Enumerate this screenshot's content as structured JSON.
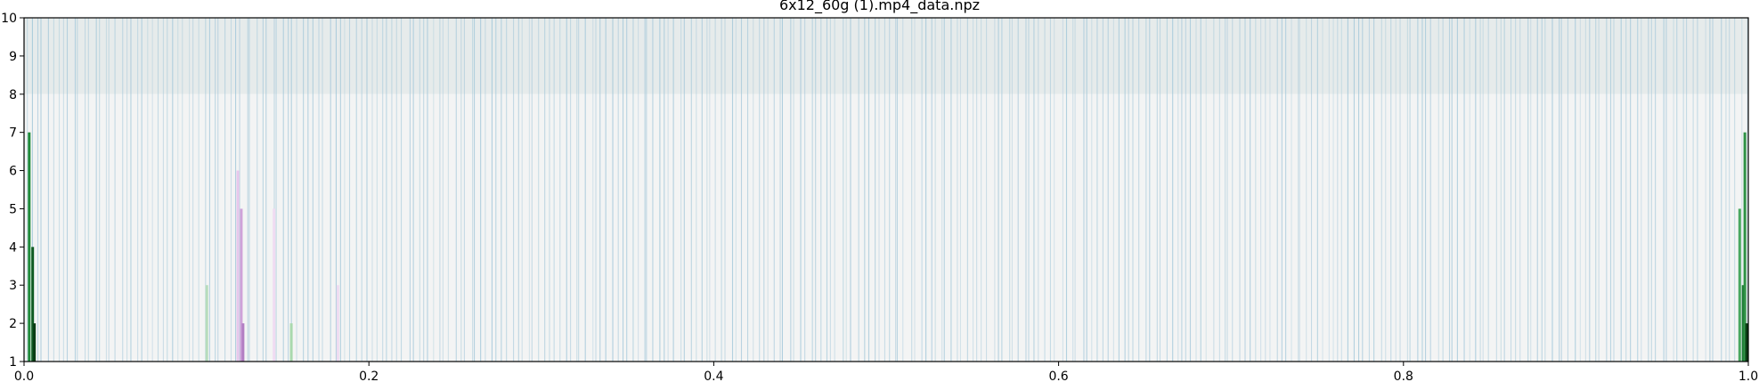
{
  "chart_data": {
    "type": "heatmap",
    "title": "6x12_60g (1).mp4_data.npz",
    "xlabel": "",
    "ylabel": "",
    "xlim": [
      0.0,
      1.0
    ],
    "ylim": [
      1,
      10
    ],
    "xticks": [
      0.0,
      0.2,
      0.4,
      0.6,
      0.8,
      1.0
    ],
    "xtick_labels": [
      "0.0",
      "0.2",
      "0.4",
      "0.6",
      "0.8",
      "1.0"
    ],
    "yticks": [
      1,
      2,
      3,
      4,
      5,
      6,
      7,
      8,
      9,
      10
    ],
    "ytick_labels": [
      "1",
      "2",
      "3",
      "4",
      "5",
      "6",
      "7",
      "8",
      "9",
      "10"
    ],
    "grid": false,
    "legend": "none",
    "background_bands": [
      {
        "y_range": [
          8,
          10
        ],
        "color": "#e6ebeb"
      },
      {
        "y_range": [
          1,
          8
        ],
        "color": "#f3f4f4"
      }
    ],
    "stripe_color": "#9fc5d8",
    "stripe_count": 330,
    "highlight_bars": [
      {
        "x": 0.003,
        "y_top": 7,
        "color": "#1f8a3a"
      },
      {
        "x": 0.005,
        "y_top": 4,
        "color": "#0f5a22"
      },
      {
        "x": 0.006,
        "y_top": 2,
        "color": "#0a3d15"
      },
      {
        "x": 0.106,
        "y_top": 3,
        "color": "#b6dcbc"
      },
      {
        "x": 0.124,
        "y_top": 6,
        "color": "#e8c8ec"
      },
      {
        "x": 0.126,
        "y_top": 5,
        "color": "#cfa2d9"
      },
      {
        "x": 0.127,
        "y_top": 2,
        "color": "#b27ec3"
      },
      {
        "x": 0.145,
        "y_top": 5,
        "color": "#f0dbf2"
      },
      {
        "x": 0.155,
        "y_top": 2,
        "color": "#a9d9ae"
      },
      {
        "x": 0.182,
        "y_top": 3,
        "color": "#efdcf1"
      },
      {
        "x": 0.995,
        "y_top": 5,
        "color": "#4aa860"
      },
      {
        "x": 0.997,
        "y_top": 3,
        "color": "#1f7a35"
      },
      {
        "x": 0.998,
        "y_top": 7,
        "color": "#2f9346"
      },
      {
        "x": 0.999,
        "y_top": 2,
        "color": "#0a3d15"
      }
    ]
  }
}
